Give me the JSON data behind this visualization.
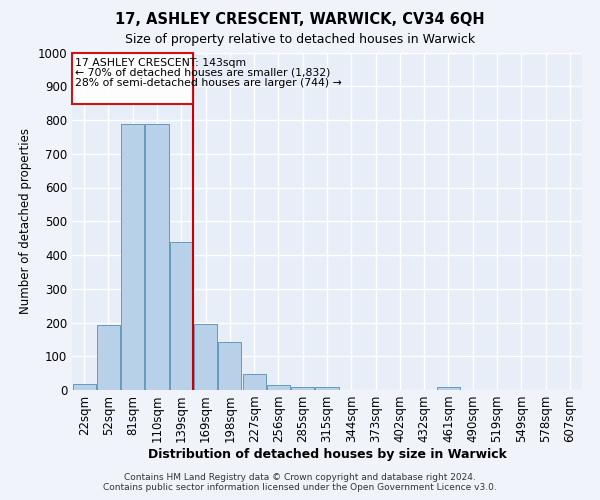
{
  "title1": "17, ASHLEY CRESCENT, WARWICK, CV34 6QH",
  "title2": "Size of property relative to detached houses in Warwick",
  "xlabel": "Distribution of detached houses by size in Warwick",
  "ylabel": "Number of detached properties",
  "categories": [
    "22sqm",
    "52sqm",
    "81sqm",
    "110sqm",
    "139sqm",
    "169sqm",
    "198sqm",
    "227sqm",
    "256sqm",
    "285sqm",
    "315sqm",
    "344sqm",
    "373sqm",
    "402sqm",
    "432sqm",
    "461sqm",
    "490sqm",
    "519sqm",
    "549sqm",
    "578sqm",
    "607sqm"
  ],
  "values": [
    17,
    193,
    787,
    787,
    440,
    197,
    142,
    48,
    16,
    10,
    10,
    0,
    0,
    0,
    0,
    10,
    0,
    0,
    0,
    0,
    0
  ],
  "bar_color": "#b8d0e8",
  "bar_edge_color": "#6699bb",
  "vline_x": 4.5,
  "vline_color": "#cc0000",
  "annotation_box_color": "#cc0000",
  "annotation_text_line1": "17 ASHLEY CRESCENT: 143sqm",
  "annotation_text_line2": "← 70% of detached houses are smaller (1,832)",
  "annotation_text_line3": "28% of semi-detached houses are larger (744) →",
  "ylim": [
    0,
    1000
  ],
  "yticks": [
    0,
    100,
    200,
    300,
    400,
    500,
    600,
    700,
    800,
    900,
    1000
  ],
  "bg_color": "#e8eef8",
  "grid_color": "#ffffff",
  "fig_bg_color": "#f0f4fa",
  "footer_line1": "Contains HM Land Registry data © Crown copyright and database right 2024.",
  "footer_line2": "Contains public sector information licensed under the Open Government Licence v3.0."
}
